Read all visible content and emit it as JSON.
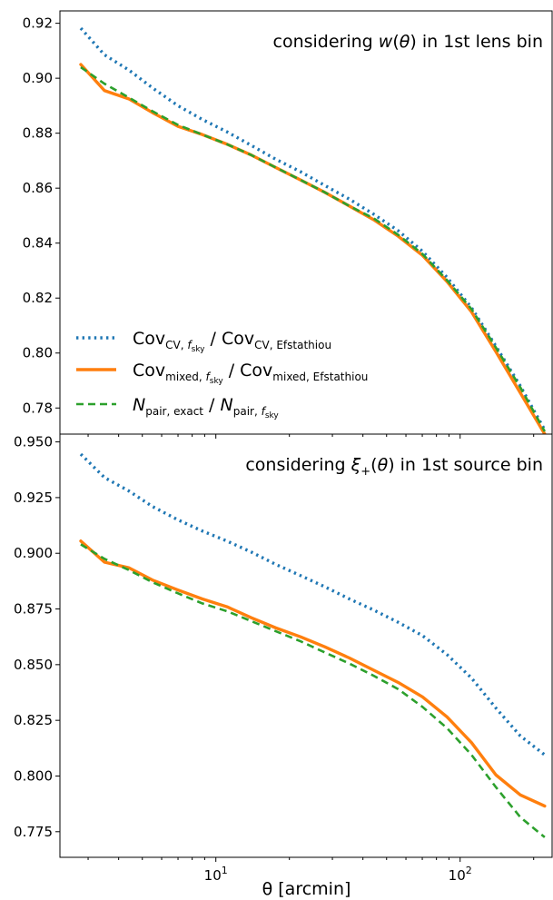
{
  "colors": {
    "cv": "#1f77b4",
    "mixed": "#ff7f0e",
    "npair": "#2ca02c",
    "axes": "#000000"
  },
  "figure": {
    "xlabel": "θ [arcmin]",
    "xscale": "log",
    "xlim": [
      2.3,
      240
    ],
    "xticks": [
      {
        "value": 10,
        "base": "10",
        "exp": "1"
      },
      {
        "value": 100,
        "base": "10",
        "exp": "2"
      }
    ]
  },
  "legend": {
    "placement": "lower-left (top panel)",
    "entries": [
      {
        "series": "cv",
        "style": "dotted",
        "num_main": "Cov",
        "num_sub": "CV, ",
        "num_sub2": "f",
        "num_sub3": "sky",
        "sep": " / ",
        "den_main": "Cov",
        "den_sub": "CV, Efstathiou",
        "den_sub2": "",
        "den_sub3": ""
      },
      {
        "series": "mixed",
        "style": "solid",
        "num_main": "Cov",
        "num_sub": "mixed, ",
        "num_sub2": "f",
        "num_sub3": "sky",
        "sep": " / ",
        "den_main": "Cov",
        "den_sub": "mixed, Efstathiou",
        "den_sub2": "",
        "den_sub3": ""
      },
      {
        "series": "npair",
        "style": "dashed",
        "num_main": "N",
        "num_sub": "pair, exact",
        "num_sub2": "",
        "num_sub3": "",
        "sep": " / ",
        "den_main": "N",
        "den_sub": "pair, ",
        "den_sub2": "f",
        "den_sub3": "sky"
      }
    ]
  },
  "chart_data": [
    {
      "type": "line",
      "title_parts": [
        "considering ",
        "w",
        "(",
        "θ",
        ") in 1st lens bin"
      ],
      "xlabel": "",
      "ylabel": "",
      "xscale": "log",
      "ylim": [
        0.7705,
        0.9245
      ],
      "yticks": [
        0.78,
        0.8,
        0.82,
        0.84,
        0.86,
        0.88,
        0.9,
        0.92
      ],
      "ytick_labels": [
        "0.78",
        "0.80",
        "0.82",
        "0.84",
        "0.86",
        "0.88",
        "0.90",
        "0.92"
      ],
      "x": [
        2.8,
        3.5,
        4.4,
        5.5,
        7.0,
        8.8,
        11.1,
        14.0,
        17.6,
        22.2,
        27.9,
        35.2,
        44.3,
        55.8,
        70.2,
        88.4,
        111.3,
        140.1,
        176.4,
        222.0
      ],
      "series": [
        {
          "key": "cv",
          "style": "dotted",
          "values": [
            0.9182,
            0.9085,
            0.903,
            0.8965,
            0.89,
            0.885,
            0.8805,
            0.8755,
            0.8705,
            0.866,
            0.861,
            0.856,
            0.8505,
            0.8445,
            0.837,
            0.8275,
            0.8165,
            0.8025,
            0.788,
            0.772
          ]
        },
        {
          "key": "mixed",
          "style": "solid",
          "values": [
            0.905,
            0.8955,
            0.8925,
            0.8875,
            0.8825,
            0.8795,
            0.876,
            0.872,
            0.8675,
            0.863,
            0.8585,
            0.8535,
            0.8485,
            0.8425,
            0.8355,
            0.826,
            0.815,
            0.8005,
            0.7855,
            0.7705
          ]
        },
        {
          "key": "npair",
          "style": "dashed",
          "values": [
            0.904,
            0.898,
            0.893,
            0.888,
            0.883,
            0.8795,
            0.876,
            0.872,
            0.8675,
            0.863,
            0.8585,
            0.8535,
            0.849,
            0.843,
            0.836,
            0.8265,
            0.816,
            0.802,
            0.7875,
            0.7715
          ]
        }
      ]
    },
    {
      "type": "line",
      "title_parts": [
        "considering ",
        "ξ",
        "+",
        "(",
        "θ",
        ") in 1st source bin"
      ],
      "xlabel": "θ [arcmin]",
      "ylabel": "",
      "xscale": "log",
      "ylim": [
        0.7635,
        0.9535
      ],
      "yticks": [
        0.775,
        0.8,
        0.825,
        0.85,
        0.875,
        0.9,
        0.925,
        0.95
      ],
      "ytick_labels": [
        "0.775",
        "0.800",
        "0.825",
        "0.850",
        "0.875",
        "0.900",
        "0.925",
        "0.950"
      ],
      "x": [
        2.8,
        3.5,
        4.4,
        5.5,
        7.0,
        8.8,
        11.1,
        14.0,
        17.6,
        22.2,
        27.9,
        35.2,
        44.3,
        55.8,
        70.2,
        88.4,
        111.3,
        140.1,
        176.4,
        222.0
      ],
      "series": [
        {
          "key": "cv",
          "style": "dotted",
          "values": [
            0.9445,
            0.934,
            0.928,
            0.921,
            0.915,
            0.91,
            0.9055,
            0.9005,
            0.895,
            0.89,
            0.885,
            0.8795,
            0.8745,
            0.869,
            0.863,
            0.8545,
            0.844,
            0.8305,
            0.818,
            0.8095
          ]
        },
        {
          "key": "mixed",
          "style": "solid",
          "values": [
            0.9055,
            0.896,
            0.8935,
            0.888,
            0.8835,
            0.8795,
            0.876,
            0.871,
            0.8665,
            0.8625,
            0.858,
            0.853,
            0.8475,
            0.842,
            0.8355,
            0.8265,
            0.815,
            0.8005,
            0.7915,
            0.7865
          ]
        },
        {
          "key": "npair",
          "style": "dashed",
          "values": [
            0.904,
            0.8975,
            0.8925,
            0.887,
            0.882,
            0.8775,
            0.874,
            0.8695,
            0.865,
            0.8605,
            0.8555,
            0.8505,
            0.845,
            0.839,
            0.831,
            0.8215,
            0.8095,
            0.795,
            0.7815,
            0.7725
          ]
        }
      ]
    }
  ]
}
